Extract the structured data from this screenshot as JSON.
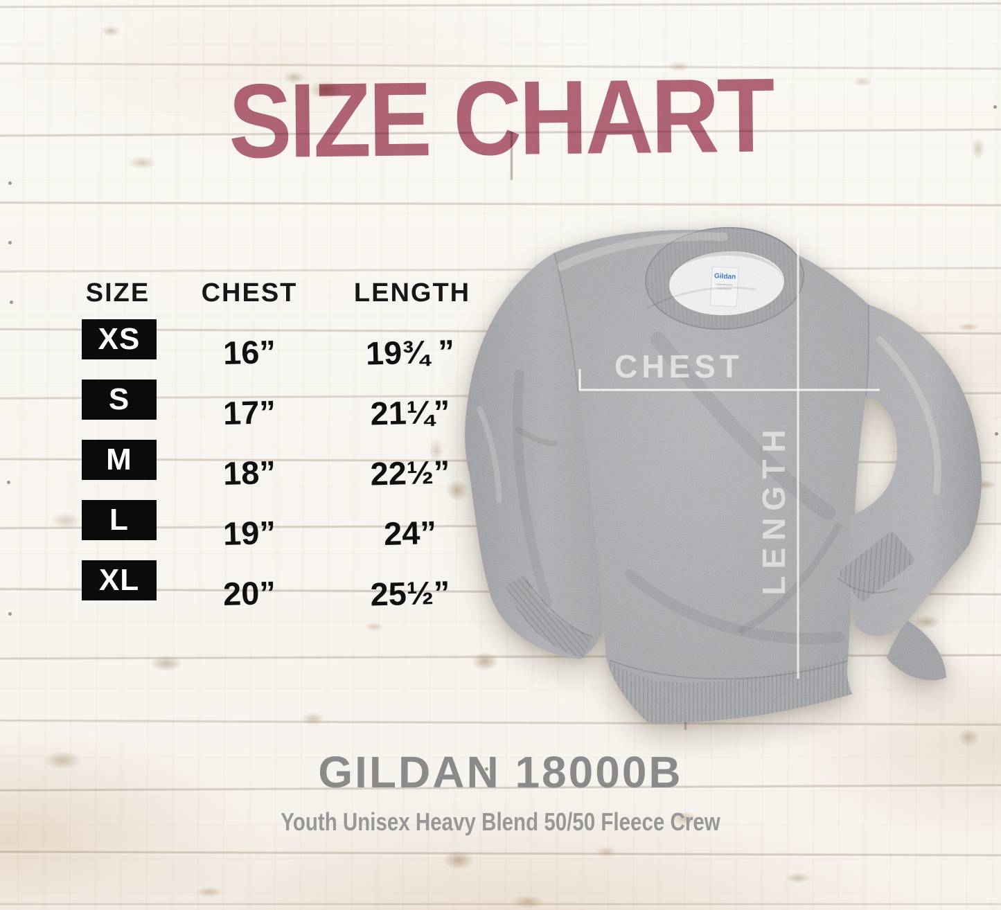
{
  "page": {
    "title": "SIZE CHART"
  },
  "table": {
    "headers": [
      "SIZE",
      "CHEST",
      "LENGTH"
    ],
    "rows": [
      {
        "size": "XS",
        "chest": "16”",
        "length": "19¾ ”"
      },
      {
        "size": "S",
        "chest": "17”",
        "length": "21¼”"
      },
      {
        "size": "M",
        "chest": "18”",
        "length": "22½”"
      },
      {
        "size": "L",
        "chest": "19”",
        "length": "24”"
      },
      {
        "size": "XL",
        "chest": "20”",
        "length": "25½”"
      }
    ]
  },
  "garment": {
    "chest_label": "CHEST",
    "length_label": "LENGTH",
    "tag_text": "Gildan"
  },
  "footer": {
    "product_code": "GILDAN 18000B",
    "product_name": "Youth Unisex Heavy Blend 50/50 Fleece Crew"
  },
  "colors": {
    "title": "#b3687c",
    "table_text": "#141414",
    "size_badge_bg": "#0b0b0b",
    "size_badge_text": "#ffffff",
    "footer_code": "#8a8a8a",
    "footer_name": "#979797",
    "sweatshirt_gray": "#a7a9ac",
    "measure_line": "#ffffff",
    "tag_brand_blue": "#2f6fc2"
  },
  "chart_data": {
    "type": "table",
    "title": "SIZE CHART",
    "columns": [
      "SIZE",
      "CHEST",
      "LENGTH"
    ],
    "categories": [
      "XS",
      "S",
      "M",
      "L",
      "XL"
    ],
    "rows": [
      [
        "XS",
        "16”",
        "19¾ ”"
      ],
      [
        "S",
        "17”",
        "21¼”"
      ],
      [
        "M",
        "18”",
        "22½”"
      ],
      [
        "L",
        "19”",
        "24”"
      ],
      [
        "XL",
        "20”",
        "25½”"
      ]
    ],
    "series": [
      {
        "name": "CHEST",
        "values": [
          16,
          17,
          18,
          19,
          20
        ]
      },
      {
        "name": "LENGTH",
        "values": [
          19.75,
          21.25,
          22.5,
          24,
          25.5
        ]
      }
    ],
    "units": "inches"
  }
}
